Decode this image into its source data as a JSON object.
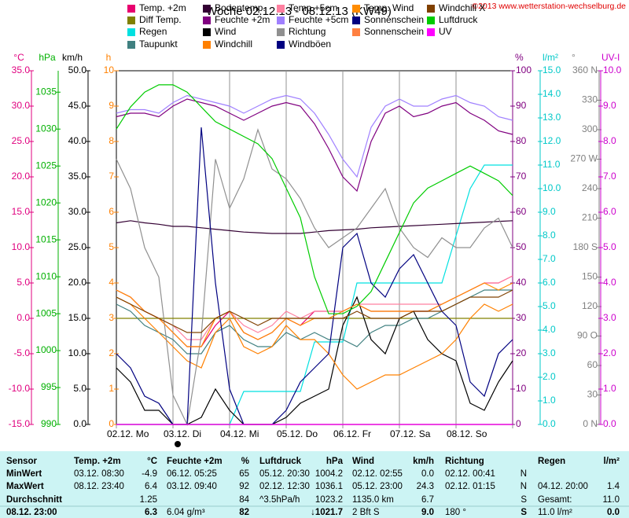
{
  "chart_data": {
    "type": "line",
    "title": "Woche 02.12.13 - 08.12.13 (KW49)",
    "copyright": "©2013 www.wetterstation-wechselburg.de",
    "categories": [
      "02.12. Mo",
      "03.12. Di",
      "04.12. Mi",
      "05.12. Do",
      "06.12. Fr",
      "07.12. Sa",
      "08.12. So"
    ],
    "xlim": [
      0,
      168
    ],
    "xticks": [
      0,
      24,
      48,
      72,
      96,
      120,
      144,
      168
    ],
    "x": [
      0,
      6,
      12,
      18,
      24,
      30,
      36,
      42,
      48,
      54,
      60,
      66,
      72,
      78,
      84,
      90,
      96,
      102,
      108,
      114,
      120,
      126,
      132,
      138,
      144,
      150,
      156,
      162,
      168
    ],
    "axes": [
      {
        "label": "°C",
        "color": "#e0007f",
        "lim": [
          -15,
          35
        ],
        "ticks": [
          {
            "value": 35,
            "label": "35.0"
          },
          {
            "value": 30,
            "label": "30.0"
          },
          {
            "value": 25,
            "label": "25.0"
          },
          {
            "value": 20,
            "label": "20.0"
          },
          {
            "value": 15,
            "label": "15.0"
          },
          {
            "value": 10,
            "label": "10.0"
          },
          {
            "value": 5,
            "label": "5.0"
          },
          {
            "value": 0,
            "label": "0.0"
          },
          {
            "value": -5,
            "label": "-5.0"
          },
          {
            "value": -10,
            "label": "-10.0"
          },
          {
            "value": -15,
            "label": "-15.0"
          }
        ]
      },
      {
        "label": "hPa",
        "color": "#00b000",
        "lim": [
          990,
          1037.9
        ],
        "ticks": [
          1035,
          1030,
          1025,
          1020,
          1015,
          1010,
          1005,
          1000,
          995,
          990
        ]
      },
      {
        "label": "km/h",
        "color": "#000000",
        "lim": [
          0,
          50
        ],
        "ticks": [
          {
            "value": 50,
            "label": "50.0"
          },
          {
            "value": 45,
            "label": "45.0"
          },
          {
            "value": 40,
            "label": "40.0"
          },
          {
            "value": 35,
            "label": "35.0"
          },
          {
            "value": 30,
            "label": "30.0"
          },
          {
            "value": 25,
            "label": "25.0"
          },
          {
            "value": 20,
            "label": "20.0"
          },
          {
            "value": 15,
            "label": "15.0"
          },
          {
            "value": 10,
            "label": "10.0"
          },
          {
            "value": 5,
            "label": "5.0"
          },
          {
            "value": 0,
            "label": "0.0"
          }
        ]
      },
      {
        "label": "h",
        "color": "#ff8000",
        "lim": [
          0,
          10
        ],
        "ticks": [
          10,
          9,
          8,
          7,
          6,
          5,
          4,
          3,
          2,
          1,
          0
        ]
      },
      {
        "label": "%",
        "color": "#800080",
        "lim": [
          0,
          100
        ],
        "ticks": [
          100,
          90,
          80,
          70,
          60,
          50,
          40,
          30,
          20,
          10,
          0
        ]
      },
      {
        "label": "l/m²",
        "color": "#00c8c8",
        "lim": [
          0,
          15
        ],
        "ticks": [
          {
            "value": 15,
            "label": "15.0"
          },
          {
            "value": 14,
            "label": "14.0"
          },
          {
            "value": 13,
            "label": "13.0"
          },
          {
            "value": 12,
            "label": "12.0"
          },
          {
            "value": 11,
            "label": "11.0"
          },
          {
            "value": 10,
            "label": "10.0"
          },
          {
            "value": 9,
            "label": "9.0"
          },
          {
            "value": 8,
            "label": "8.0"
          },
          {
            "value": 7,
            "label": "7.0"
          },
          {
            "value": 6,
            "label": "6.0"
          },
          {
            "value": 5,
            "label": "5.0"
          },
          {
            "value": 4,
            "label": "4.0"
          },
          {
            "value": 3,
            "label": "3.0"
          },
          {
            "value": 2,
            "label": "2.0"
          },
          {
            "value": 1,
            "label": "1.0"
          },
          {
            "value": 0,
            "label": "0.0"
          }
        ]
      },
      {
        "label": "°",
        "color": "#808080",
        "lim": [
          0,
          360
        ],
        "ticks": [
          {
            "value": 360,
            "label": "360 N"
          },
          330,
          300,
          {
            "value": 270,
            "label": "270 W"
          },
          240,
          210,
          {
            "value": 180,
            "label": "180 S"
          },
          150,
          120,
          {
            "value": 90,
            "label": "90 O"
          },
          60,
          30,
          {
            "value": 0,
            "label": "0 N"
          }
        ]
      },
      {
        "label": "UV-I",
        "color": "#cc00cc",
        "lim": [
          0,
          10
        ],
        "ticks": [
          {
            "value": 10,
            "label": "10.0"
          },
          {
            "value": 9,
            "label": "9.0"
          },
          {
            "value": 8,
            "label": "8.0"
          },
          {
            "value": 7,
            "label": "7.0"
          },
          {
            "value": 6,
            "label": "6.0"
          },
          {
            "value": 5,
            "label": "5.0"
          },
          {
            "value": 4,
            "label": "4.0"
          },
          {
            "value": 3,
            "label": "3.0"
          },
          {
            "value": 2,
            "label": "2.0"
          },
          {
            "value": 1,
            "label": "1.0"
          },
          {
            "value": 0,
            "label": "0.0"
          }
        ]
      }
    ],
    "series": [
      {
        "name": "Temp. +2m",
        "color": "#e8006f",
        "axis": 0,
        "values": [
          4,
          3,
          1,
          0,
          -2,
          -4,
          -4,
          -1,
          1,
          -2,
          -3,
          -2,
          0,
          -1,
          1,
          1,
          1,
          2,
          1,
          1,
          1,
          1,
          1,
          2,
          3,
          4,
          5,
          5,
          6
        ]
      },
      {
        "name": "Diff Temp.",
        "color": "#808000",
        "axis": 0,
        "values": [
          0,
          0,
          0,
          0,
          0,
          0,
          0,
          0,
          0,
          0,
          0,
          0,
          0,
          0,
          0,
          0,
          0,
          0,
          0,
          0,
          0,
          0,
          0,
          0,
          0,
          0,
          0,
          0,
          0
        ]
      },
      {
        "name": "Regen",
        "color": "#00e0e0",
        "axis": 5,
        "values": [
          0,
          0,
          0,
          0,
          0,
          0,
          0,
          0,
          0,
          1.4,
          1.4,
          1.4,
          1.4,
          1.4,
          3.5,
          3.5,
          3.5,
          6,
          6,
          6,
          6,
          6,
          6,
          6,
          8,
          10,
          11,
          11,
          11
        ]
      },
      {
        "name": "Taupunkt",
        "color": "#408080",
        "axis": 0,
        "values": [
          2,
          1,
          -1,
          -2,
          -3,
          -5,
          -5,
          -2,
          -1,
          -3,
          -4,
          -4,
          -2,
          -3,
          -2,
          -3,
          -3,
          -4,
          -2,
          -1,
          -1,
          0,
          0,
          1,
          2,
          3,
          4,
          4,
          4
        ]
      },
      {
        "name": "Bodentemp.",
        "color": "#330033",
        "axis": 0,
        "values": [
          13.5,
          13.8,
          13.5,
          13.3,
          13,
          13,
          12.8,
          12.6,
          12.4,
          12.2,
          12.1,
          12,
          12,
          12,
          12.2,
          12.4,
          12.5,
          12.6,
          12.8,
          12.9,
          13,
          13.1,
          13.2,
          13.3,
          13.4,
          13.5,
          13.6,
          13.7,
          13.8
        ]
      },
      {
        "name": "Feuchte +2m",
        "color": "#800080",
        "axis": 4,
        "values": [
          87,
          88,
          88,
          87,
          90,
          92,
          91,
          90,
          88,
          86,
          88,
          90,
          91,
          90,
          85,
          78,
          70,
          66,
          80,
          88,
          90,
          87,
          88,
          90,
          91,
          88,
          86,
          83,
          82
        ]
      },
      {
        "name": "Wind",
        "color": "#000000",
        "axis": 2,
        "values": [
          8,
          6,
          2,
          2,
          0,
          0,
          1,
          5,
          2,
          0,
          0,
          0,
          1,
          3,
          4,
          5,
          14,
          18,
          12,
          10,
          15,
          16,
          12,
          10,
          9,
          3,
          2,
          6,
          9
        ]
      },
      {
        "name": "Windchill",
        "color": "#ff8000",
        "axis": 0,
        "values": [
          3,
          2,
          0,
          -2,
          -4,
          -6,
          -7,
          -2,
          0,
          -4,
          -5,
          -4,
          -1,
          -3,
          -3,
          -5,
          -8,
          -10,
          -9,
          -8,
          -8,
          -7,
          -6,
          -5,
          -3,
          0,
          2,
          1,
          2
        ]
      },
      {
        "name": "Temp.+5cm",
        "color": "#ff80a0",
        "axis": 0,
        "values": [
          4,
          3,
          1,
          0,
          -1,
          -3,
          -3,
          0,
          1,
          -1,
          -2,
          -1,
          1,
          0,
          1,
          1,
          1,
          2,
          2,
          2,
          2,
          2,
          2,
          2,
          3,
          4,
          5,
          5,
          6
        ]
      },
      {
        "name": "Feuchte +5cm",
        "color": "#a080ff",
        "axis": 4,
        "values": [
          88,
          89,
          89,
          88,
          91,
          93,
          92,
          91,
          90,
          88,
          90,
          92,
          93,
          92,
          88,
          82,
          75,
          70,
          84,
          90,
          92,
          90,
          90,
          92,
          93,
          91,
          90,
          87,
          86
        ]
      },
      {
        "name": "Richtung",
        "color": "#909090",
        "axis": 6,
        "values": [
          270,
          240,
          180,
          150,
          30,
          0,
          90,
          270,
          220,
          250,
          300,
          260,
          250,
          230,
          200,
          180,
          190,
          200,
          220,
          240,
          200,
          180,
          170,
          190,
          180,
          180,
          200,
          210,
          180
        ]
      },
      {
        "name": "Windböen",
        "color": "#000080",
        "axis": 2,
        "values": [
          10,
          8,
          4,
          3,
          0,
          0,
          42,
          20,
          5,
          0,
          0,
          0,
          2,
          6,
          8,
          10,
          25,
          27,
          20,
          18,
          22,
          24,
          20,
          16,
          14,
          6,
          4,
          10,
          12
        ]
      },
      {
        "name": "Temp. Wind",
        "color": "#ff8c00",
        "axis": 0,
        "values": [
          4,
          3,
          1,
          0,
          -2,
          -4,
          -4,
          0,
          1,
          -2,
          -3,
          -2,
          0,
          -1,
          0,
          0,
          1,
          2,
          1,
          1,
          1,
          1,
          1,
          2,
          3,
          4,
          5,
          4,
          5
        ]
      },
      {
        "name": "Sonnenschein",
        "color": "#000080",
        "axis": 3,
        "values": [
          0,
          0,
          0,
          0,
          0,
          0,
          0,
          0,
          0,
          0,
          0,
          0,
          0,
          0,
          0,
          0,
          0,
          0,
          0,
          0,
          0,
          0,
          0,
          0,
          0,
          0,
          0,
          0,
          0
        ]
      },
      {
        "name": "Sonnenschein",
        "color": "#ff8040",
        "axis": 3,
        "values": [
          0,
          0,
          0,
          0,
          0,
          0,
          0,
          0,
          0,
          0,
          0,
          0,
          0,
          0,
          0,
          0,
          0,
          0,
          0,
          0,
          0,
          0,
          0,
          0,
          0,
          0,
          0,
          0,
          0
        ]
      },
      {
        "name": "Windchill X",
        "color": "#804000",
        "axis": 0,
        "values": [
          3,
          2,
          1,
          0,
          -1,
          -2,
          -2,
          0,
          1,
          0,
          -1,
          0,
          0,
          0,
          0,
          0,
          0,
          1,
          0,
          0,
          0,
          1,
          1,
          1,
          2,
          3,
          3,
          3,
          4
        ]
      },
      {
        "name": "Luftdruck",
        "color": "#00cc00",
        "axis": 1,
        "values": [
          1030,
          1033,
          1035,
          1036,
          1036,
          1035,
          1033,
          1031,
          1030,
          1029,
          1028,
          1026,
          1022,
          1018,
          1010,
          1005,
          1005,
          1006,
          1008,
          1012,
          1016,
          1020,
          1022,
          1023,
          1024,
          1025,
          1024,
          1023,
          1021
        ]
      },
      {
        "name": "UV",
        "color": "#ff00ff",
        "axis": 7,
        "values": [
          0,
          0,
          0,
          0,
          0,
          0,
          0,
          0,
          0,
          0,
          0,
          0,
          0,
          0,
          0,
          0,
          0,
          0,
          0,
          0,
          0,
          0,
          0,
          0,
          0,
          0,
          0,
          0,
          0
        ]
      }
    ]
  },
  "table": {
    "header": [
      "Sensor",
      "Temp. +2m",
      "°C",
      "Feuchte +2m",
      "%",
      "Luftdruck",
      "hPa",
      "Wind",
      "km/h",
      "Richtung",
      null,
      "Regen",
      "l/m²"
    ],
    "rows": [
      [
        "MinWert",
        "03.12. 08:30",
        "-4.9",
        "06.12. 05:25",
        "65",
        "05.12. 20:30",
        "1004.2",
        "02.12. 02:55",
        "0.0",
        "02.12. 00:41",
        "N",
        null,
        null
      ],
      [
        "MaxWert",
        "08.12. 23:40",
        "6.4",
        "03.12. 09:40",
        "92",
        "02.12. 12:30",
        "1036.1",
        "05.12. 23:00",
        "24.3",
        "02.12. 01:15",
        "N",
        "04.12. 20:00",
        "1.4"
      ],
      [
        "Durchschnitt",
        null,
        "1.25",
        null,
        "84",
        "^3.5hPa/h",
        "1023.2",
        "1135.0 km",
        "6.7",
        null,
        "S",
        "Gesamt:",
        "11.0"
      ],
      [
        "08.12. 23:00",
        null,
        "6.3",
        "6.04 g/m³",
        "82",
        null,
        "↓1021.7",
        "2 Bft S",
        "9.0",
        "180 °",
        "S",
        "11.0 l/m²",
        "0.0"
      ]
    ]
  }
}
